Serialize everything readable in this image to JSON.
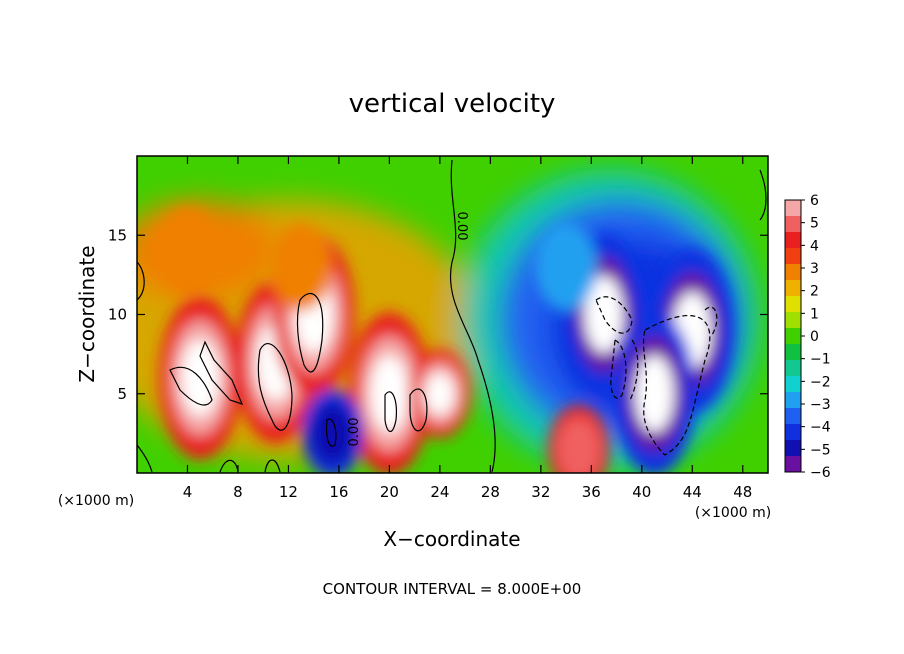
{
  "chart_data": {
    "type": "heatmap",
    "title": "vertical velocity",
    "xlabel": "X−coordinate",
    "ylabel": "Z−coordinate",
    "x_unit_left": "(×1000 m)",
    "x_unit_right": "(×1000 m)",
    "xlim": [
      0,
      50
    ],
    "ylim": [
      0,
      20
    ],
    "x_ticks": [
      4,
      8,
      12,
      16,
      20,
      24,
      28,
      32,
      36,
      40,
      44,
      48
    ],
    "y_ticks": [
      5,
      10,
      15
    ],
    "colorbar": {
      "ticks": [
        "6",
        "5",
        "4",
        "3",
        "2",
        "1",
        "0",
        "−1",
        "−2",
        "−3",
        "−4",
        "−5",
        "−6"
      ],
      "range": [
        -6,
        6
      ],
      "colors": [
        "#f5a6a6",
        "#f06060",
        "#e82020",
        "#f04010",
        "#f08000",
        "#f0b000",
        "#e0e000",
        "#a0e000",
        "#40d000",
        "#10c040",
        "#10c890",
        "#10d0d0",
        "#20a0f0",
        "#2060f0",
        "#1030e0",
        "#1010b0",
        "#6a10a0"
      ]
    },
    "contour_labels": [
      "0.00",
      "0.00"
    ],
    "contour_interval": "CONTOUR INTERVAL = 8.000E+00",
    "cells": [
      {
        "x": 5,
        "z": 6,
        "w": 8
      },
      {
        "x": 11,
        "z": 7,
        "w": 9
      },
      {
        "x": 14,
        "z": 10,
        "w": 9
      },
      {
        "x": 20,
        "z": 5,
        "w": 8
      },
      {
        "x": 24,
        "z": 5,
        "w": 7
      },
      {
        "x": 13,
        "z": 13,
        "w": 3
      },
      {
        "x": 4,
        "z": 14,
        "w": 3
      },
      {
        "x": 15.5,
        "z": 2.5,
        "w": -5
      },
      {
        "x": 35,
        "z": 1.5,
        "w": 5
      },
      {
        "x": 37,
        "z": 10,
        "w": -9
      },
      {
        "x": 44,
        "z": 9,
        "w": -8
      },
      {
        "x": 41,
        "z": 5,
        "w": -9
      },
      {
        "x": 34,
        "z": 13,
        "w": -3
      }
    ]
  }
}
